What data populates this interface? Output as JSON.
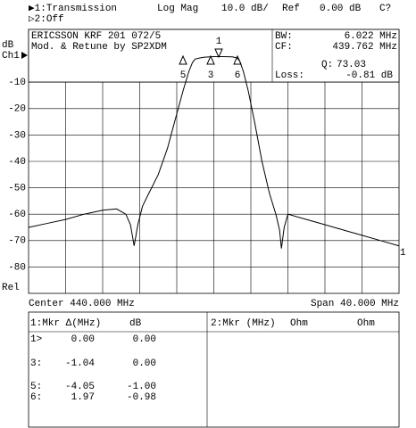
{
  "header": {
    "channel1": "▶1:Transmission",
    "format": "Log Mag",
    "scale": "10.0 dB/",
    "ref_label": "Ref",
    "ref_value": "0.00 dB",
    "cal": "C?",
    "channel2": "▷2:Off"
  },
  "info": {
    "line1": "ERICSSON KRF 201 072/5",
    "line2": "Mod. & Retune by SP2XDM",
    "bw_label": "BW:",
    "bw": "6.022 MHz",
    "cf_label": "CF:",
    "cf": "439.762 MHz",
    "q_label": "Q:",
    "q": "73.03",
    "loss_label": "Loss:",
    "loss": "-0.81 dB"
  },
  "axis": {
    "unit": "dB",
    "channel": "Ch1",
    "rel": "Rel",
    "trace_label": "1",
    "center": "Center 440.000 MHz",
    "span": "Span 40.000 MHz"
  },
  "plot_markers": [
    "1",
    "3",
    "5",
    "6"
  ],
  "marker_table": {
    "left_headers": [
      "1:Mkr Δ(MHz)",
      "dB"
    ],
    "right_headers": [
      "2:Mkr (MHz)",
      "Ohm",
      "Ohm"
    ],
    "rows": [
      [
        "1>",
        "0.00",
        "0.00"
      ],
      [
        "3:",
        "-1.04",
        "0.00"
      ],
      [
        "5:",
        "-4.05",
        "-1.00"
      ],
      [
        "6:",
        "1.97",
        "-0.98"
      ]
    ]
  },
  "chart_data": {
    "type": "line",
    "x": [
      420,
      422,
      424,
      426,
      428,
      429.5,
      430.5,
      431,
      431.4,
      431.8,
      432.3,
      433,
      434,
      435,
      436,
      436.7,
      437.3,
      437.7,
      438,
      438.5,
      439,
      440,
      441,
      442,
      442.5,
      442.8,
      443.2,
      443.7,
      444.4,
      445.2,
      446,
      446.7,
      447.1,
      447.3,
      447.6,
      448,
      450,
      452,
      454,
      456,
      458,
      460
    ],
    "series": [
      {
        "name": "1",
        "color": "#000000",
        "values": [
          -65,
          -63.5,
          -62,
          -60,
          -58.5,
          -58,
          -60,
          -64,
          -72,
          -64,
          -57,
          -52,
          -45,
          -35,
          -22,
          -13,
          -6,
          -2.5,
          -1.2,
          -0.8,
          -0.5,
          -0.3,
          -0.3,
          -0.4,
          -0.8,
          -2,
          -6,
          -13,
          -25,
          -40,
          -52,
          -60,
          -66,
          -73,
          -65,
          -60,
          -62,
          -64,
          -66,
          -68,
          -70,
          -72
        ]
      }
    ],
    "xlim": [
      420,
      460
    ],
    "ylim": [
      -90,
      10
    ],
    "yticks": [
      -80,
      -70,
      -60,
      -50,
      -40,
      -30,
      -20,
      -10
    ],
    "grid": true
  }
}
